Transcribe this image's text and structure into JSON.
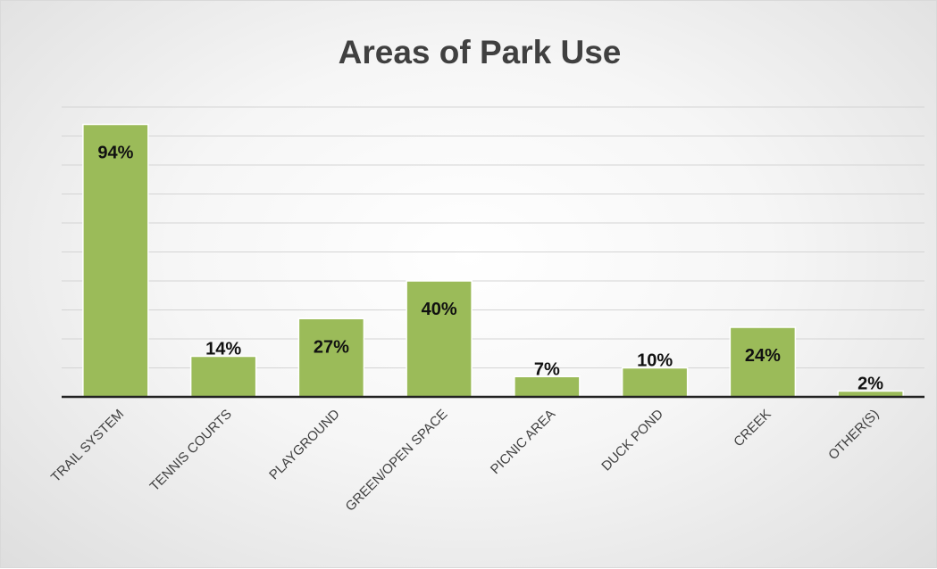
{
  "chart_data": {
    "type": "bar",
    "title": "Areas of Park Use",
    "categories": [
      "TRAIL SYSTEM",
      "TENNIS COURTS",
      "PLAYGROUND",
      "GREEN/OPEN SPACE",
      "PICNIC AREA",
      "DUCK POND",
      "CREEK",
      "OTHER(S)"
    ],
    "values": [
      94,
      14,
      27,
      40,
      7,
      10,
      24,
      2
    ],
    "labels": [
      "94%",
      "14%",
      "27%",
      "40%",
      "7%",
      "10%",
      "24%",
      "2%"
    ],
    "unit": "%",
    "ylim": [
      0,
      100
    ],
    "grid": true,
    "y_axis_labels_shown": false,
    "legend": "none",
    "bar_color": "#9bbb59"
  }
}
